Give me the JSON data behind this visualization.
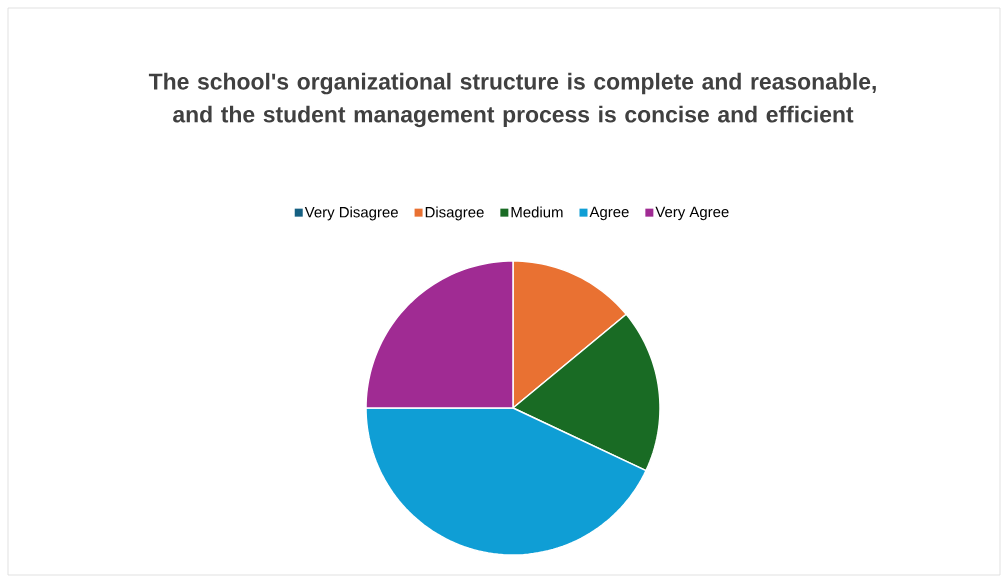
{
  "chart_data": {
    "type": "pie",
    "title": "The school's organizational structure is complete and reasonable, and the student management process is concise and efficient",
    "categories": [
      "Very Disagree",
      "Disagree",
      "Medium",
      "Agree",
      "Very Agree"
    ],
    "values": [
      0,
      14,
      18,
      43,
      25
    ],
    "colors": [
      "#156082",
      "#e97132",
      "#196b24",
      "#0f9ed5",
      "#a02b93"
    ],
    "legend": "top"
  }
}
